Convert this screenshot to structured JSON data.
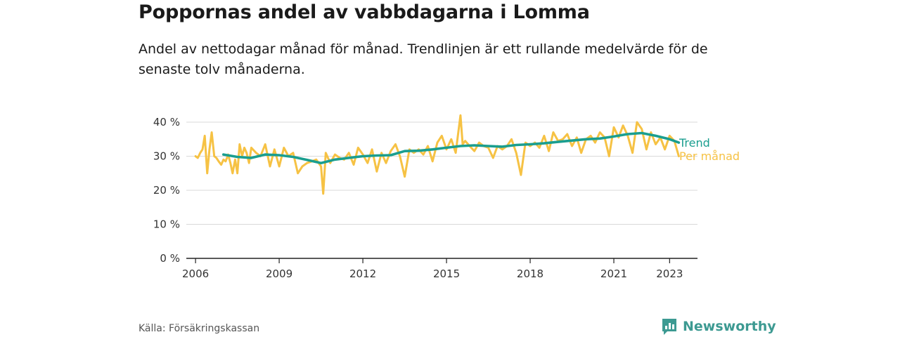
{
  "header": {
    "title": "Poppornas andel av vabbdagarna i Lomma",
    "subtitle": "Andel av nettodagar månad för månad. Trendlinjen är ett rullande medelvärde för de senaste tolv månaderna."
  },
  "footer": {
    "source": "Källa: Försäkringskassan",
    "brand": "Newsworthy"
  },
  "colors": {
    "monthly": "#f6c244",
    "trend": "#1a9e8f",
    "grid": "#d9d9d9",
    "brand": "#3d9a92"
  },
  "chart_data": {
    "type": "line",
    "title": "",
    "xlabel": "",
    "ylabel": "",
    "ylim": [
      0,
      40
    ],
    "yticks": [
      "0 %",
      "10 %",
      "20 %",
      "30 %",
      "40 %"
    ],
    "ytick_values": [
      0,
      10,
      20,
      30,
      40
    ],
    "xticks": [
      "2006",
      "2009",
      "2012",
      "2015",
      "2018",
      "2021",
      "2023"
    ],
    "xtick_values": [
      2006.0,
      2009.0,
      2012.0,
      2015.0,
      2018.0,
      2021.0,
      2023.0
    ],
    "grid": true,
    "series": [
      {
        "name": "Trend",
        "color": "#1a9e8f",
        "x": [
          2007.0,
          2007.5,
          2008.0,
          2008.5,
          2009.0,
          2009.5,
          2010.0,
          2010.5,
          2011.0,
          2011.5,
          2012.0,
          2012.5,
          2013.0,
          2013.5,
          2014.0,
          2014.5,
          2015.0,
          2015.5,
          2016.0,
          2016.5,
          2017.0,
          2017.5,
          2018.0,
          2018.5,
          2019.0,
          2019.5,
          2020.0,
          2020.5,
          2021.0,
          2021.5,
          2022.0,
          2022.5,
          2023.0,
          2023.33
        ],
        "y": [
          30.5,
          29.8,
          29.5,
          30.5,
          30.3,
          29.8,
          28.9,
          28.0,
          29.0,
          29.5,
          30.0,
          30.2,
          30.3,
          31.5,
          31.6,
          32.0,
          32.5,
          33.0,
          33.2,
          33.0,
          32.8,
          33.3,
          33.5,
          33.8,
          34.2,
          34.6,
          35.0,
          35.2,
          35.8,
          36.5,
          36.8,
          36.0,
          35.0,
          34.0
        ]
      },
      {
        "name": "Per månad",
        "color": "#f6c244",
        "x": [
          2006.0,
          2006.08,
          2006.17,
          2006.25,
          2006.33,
          2006.42,
          2006.5,
          2006.58,
          2006.67,
          2006.75,
          2006.83,
          2006.92,
          2007.0,
          2007.08,
          2007.17,
          2007.25,
          2007.33,
          2007.42,
          2007.5,
          2007.58,
          2007.67,
          2007.75,
          2007.83,
          2007.92,
          2008.0,
          2008.17,
          2008.33,
          2008.5,
          2008.67,
          2008.83,
          2009.0,
          2009.17,
          2009.33,
          2009.5,
          2009.67,
          2009.83,
          2010.0,
          2010.17,
          2010.33,
          2010.5,
          2010.58,
          2010.67,
          2010.83,
          2011.0,
          2011.17,
          2011.33,
          2011.5,
          2011.67,
          2011.83,
          2012.0,
          2012.17,
          2012.33,
          2012.5,
          2012.67,
          2012.83,
          2013.0,
          2013.17,
          2013.33,
          2013.5,
          2013.67,
          2013.83,
          2014.0,
          2014.17,
          2014.33,
          2014.5,
          2014.67,
          2014.83,
          2015.0,
          2015.17,
          2015.33,
          2015.5,
          2015.58,
          2015.67,
          2015.83,
          2016.0,
          2016.17,
          2016.33,
          2016.5,
          2016.67,
          2016.83,
          2017.0,
          2017.17,
          2017.33,
          2017.5,
          2017.67,
          2017.83,
          2018.0,
          2018.17,
          2018.33,
          2018.5,
          2018.67,
          2018.83,
          2019.0,
          2019.17,
          2019.33,
          2019.5,
          2019.67,
          2019.83,
          2020.0,
          2020.17,
          2020.33,
          2020.5,
          2020.67,
          2020.83,
          2021.0,
          2021.17,
          2021.33,
          2021.5,
          2021.67,
          2021.83,
          2022.0,
          2022.17,
          2022.33,
          2022.5,
          2022.67,
          2022.83,
          2023.0,
          2023.17,
          2023.33
        ],
        "y": [
          30.0,
          29.5,
          31.0,
          32.0,
          36.0,
          25.0,
          32.0,
          37.0,
          30.0,
          29.5,
          28.5,
          27.5,
          29.0,
          28.5,
          30.5,
          28.0,
          25.0,
          29.0,
          25.0,
          33.5,
          30.0,
          32.5,
          31.0,
          28.0,
          32.5,
          31.0,
          30.0,
          33.5,
          27.0,
          32.0,
          27.0,
          32.5,
          30.0,
          31.0,
          25.0,
          27.0,
          28.0,
          28.5,
          29.0,
          27.0,
          19.0,
          31.0,
          28.0,
          30.5,
          29.5,
          29.0,
          31.0,
          27.5,
          32.5,
          30.5,
          28.0,
          32.0,
          25.5,
          31.0,
          28.0,
          31.5,
          33.5,
          30.0,
          24.0,
          32.0,
          31.0,
          32.0,
          30.5,
          33.0,
          28.5,
          34.0,
          36.0,
          32.0,
          35.0,
          31.0,
          42.0,
          33.5,
          34.5,
          33.0,
          31.5,
          34.0,
          33.0,
          32.5,
          29.5,
          33.0,
          32.0,
          33.0,
          35.0,
          31.0,
          24.5,
          34.0,
          33.0,
          34.0,
          32.5,
          36.0,
          31.5,
          37.0,
          34.5,
          35.0,
          36.5,
          33.0,
          35.5,
          31.0,
          35.0,
          36.0,
          34.0,
          37.0,
          35.5,
          30.0,
          38.5,
          35.5,
          39.0,
          36.0,
          31.0,
          40.0,
          38.0,
          32.0,
          37.0,
          33.5,
          35.5,
          32.0,
          36.0,
          34.5,
          30.0
        ]
      }
    ],
    "legend": "end-of-line labels, right"
  }
}
